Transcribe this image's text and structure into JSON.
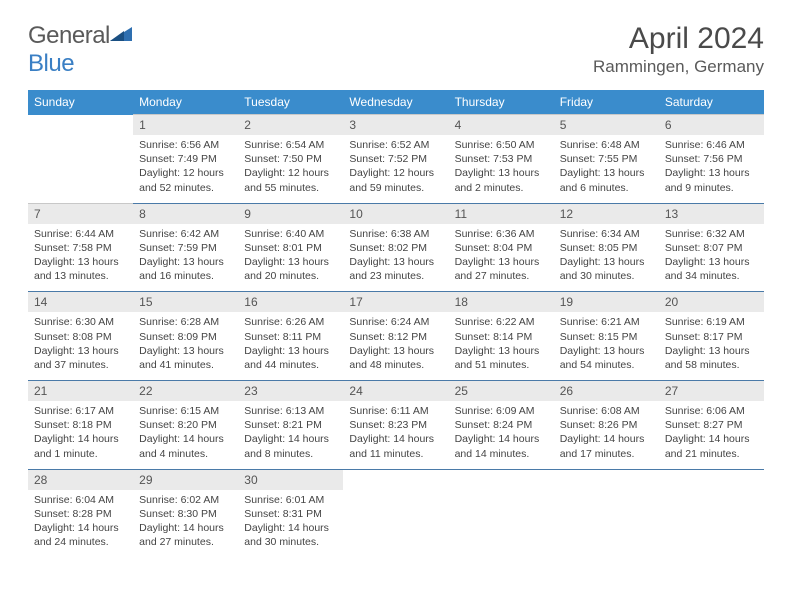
{
  "brand": {
    "word1": "General",
    "word2": "Blue"
  },
  "title": "April 2024",
  "location": "Rammingen, Germany",
  "colors": {
    "header_bg": "#3a8ccc",
    "header_text": "#ffffff",
    "daynum_bg": "#eaeaea",
    "row_divider": "#4a7aa8",
    "brand_gray": "#5a5a5a",
    "brand_blue": "#3a7fc4"
  },
  "fonts": {
    "title_size": 30,
    "location_size": 17,
    "dayheader_size": 12,
    "cell_size": 10.5
  },
  "day_headers": [
    "Sunday",
    "Monday",
    "Tuesday",
    "Wednesday",
    "Thursday",
    "Friday",
    "Saturday"
  ],
  "weeks": [
    [
      null,
      {
        "n": "1",
        "sr": "6:56 AM",
        "ss": "7:49 PM",
        "dl": "12 hours and 52 minutes."
      },
      {
        "n": "2",
        "sr": "6:54 AM",
        "ss": "7:50 PM",
        "dl": "12 hours and 55 minutes."
      },
      {
        "n": "3",
        "sr": "6:52 AM",
        "ss": "7:52 PM",
        "dl": "12 hours and 59 minutes."
      },
      {
        "n": "4",
        "sr": "6:50 AM",
        "ss": "7:53 PM",
        "dl": "13 hours and 2 minutes."
      },
      {
        "n": "5",
        "sr": "6:48 AM",
        "ss": "7:55 PM",
        "dl": "13 hours and 6 minutes."
      },
      {
        "n": "6",
        "sr": "6:46 AM",
        "ss": "7:56 PM",
        "dl": "13 hours and 9 minutes."
      }
    ],
    [
      {
        "n": "7",
        "sr": "6:44 AM",
        "ss": "7:58 PM",
        "dl": "13 hours and 13 minutes."
      },
      {
        "n": "8",
        "sr": "6:42 AM",
        "ss": "7:59 PM",
        "dl": "13 hours and 16 minutes."
      },
      {
        "n": "9",
        "sr": "6:40 AM",
        "ss": "8:01 PM",
        "dl": "13 hours and 20 minutes."
      },
      {
        "n": "10",
        "sr": "6:38 AM",
        "ss": "8:02 PM",
        "dl": "13 hours and 23 minutes."
      },
      {
        "n": "11",
        "sr": "6:36 AM",
        "ss": "8:04 PM",
        "dl": "13 hours and 27 minutes."
      },
      {
        "n": "12",
        "sr": "6:34 AM",
        "ss": "8:05 PM",
        "dl": "13 hours and 30 minutes."
      },
      {
        "n": "13",
        "sr": "6:32 AM",
        "ss": "8:07 PM",
        "dl": "13 hours and 34 minutes."
      }
    ],
    [
      {
        "n": "14",
        "sr": "6:30 AM",
        "ss": "8:08 PM",
        "dl": "13 hours and 37 minutes."
      },
      {
        "n": "15",
        "sr": "6:28 AM",
        "ss": "8:09 PM",
        "dl": "13 hours and 41 minutes."
      },
      {
        "n": "16",
        "sr": "6:26 AM",
        "ss": "8:11 PM",
        "dl": "13 hours and 44 minutes."
      },
      {
        "n": "17",
        "sr": "6:24 AM",
        "ss": "8:12 PM",
        "dl": "13 hours and 48 minutes."
      },
      {
        "n": "18",
        "sr": "6:22 AM",
        "ss": "8:14 PM",
        "dl": "13 hours and 51 minutes."
      },
      {
        "n": "19",
        "sr": "6:21 AM",
        "ss": "8:15 PM",
        "dl": "13 hours and 54 minutes."
      },
      {
        "n": "20",
        "sr": "6:19 AM",
        "ss": "8:17 PM",
        "dl": "13 hours and 58 minutes."
      }
    ],
    [
      {
        "n": "21",
        "sr": "6:17 AM",
        "ss": "8:18 PM",
        "dl": "14 hours and 1 minute."
      },
      {
        "n": "22",
        "sr": "6:15 AM",
        "ss": "8:20 PM",
        "dl": "14 hours and 4 minutes."
      },
      {
        "n": "23",
        "sr": "6:13 AM",
        "ss": "8:21 PM",
        "dl": "14 hours and 8 minutes."
      },
      {
        "n": "24",
        "sr": "6:11 AM",
        "ss": "8:23 PM",
        "dl": "14 hours and 11 minutes."
      },
      {
        "n": "25",
        "sr": "6:09 AM",
        "ss": "8:24 PM",
        "dl": "14 hours and 14 minutes."
      },
      {
        "n": "26",
        "sr": "6:08 AM",
        "ss": "8:26 PM",
        "dl": "14 hours and 17 minutes."
      },
      {
        "n": "27",
        "sr": "6:06 AM",
        "ss": "8:27 PM",
        "dl": "14 hours and 21 minutes."
      }
    ],
    [
      {
        "n": "28",
        "sr": "6:04 AM",
        "ss": "8:28 PM",
        "dl": "14 hours and 24 minutes."
      },
      {
        "n": "29",
        "sr": "6:02 AM",
        "ss": "8:30 PM",
        "dl": "14 hours and 27 minutes."
      },
      {
        "n": "30",
        "sr": "6:01 AM",
        "ss": "8:31 PM",
        "dl": "14 hours and 30 minutes."
      },
      null,
      null,
      null,
      null
    ]
  ],
  "labels": {
    "sunrise": "Sunrise:",
    "sunset": "Sunset:",
    "daylight": "Daylight:"
  }
}
